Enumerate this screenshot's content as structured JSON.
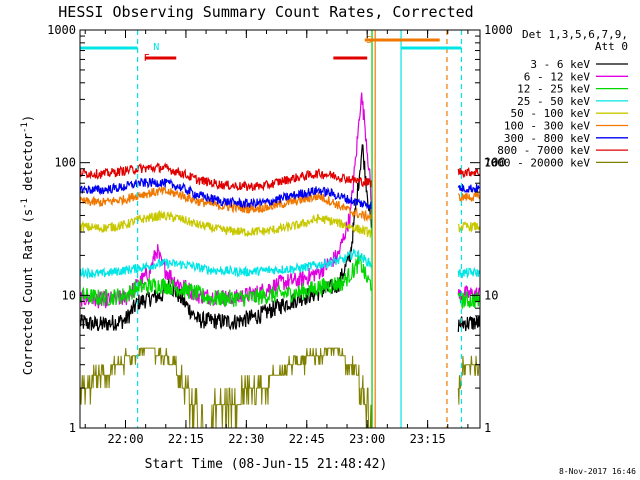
{
  "chart_data": {
    "type": "line",
    "title": "HESSI Observing Summary Count Rates, Corrected",
    "xlabel": "Start Time (08-Jun-15 21:48:42)",
    "ylabel_main": "Corrected Count Rate (s",
    "ylabel_exp1": "-1",
    "ylabel_mid": " detector",
    "ylabel_exp2": "-1",
    "ylabel_end": ")",
    "yscale": "log",
    "ylim": [
      1,
      1000
    ],
    "xlim": [
      21.8117,
      23.4667
    ],
    "x_ticks": [
      {
        "value": 22.0,
        "label": "22:00"
      },
      {
        "value": 22.25,
        "label": "22:15"
      },
      {
        "value": 22.5,
        "label": "22:30"
      },
      {
        "value": 22.75,
        "label": "22:45"
      },
      {
        "value": 23.0,
        "label": "23:00"
      },
      {
        "value": 23.25,
        "label": "23:15"
      }
    ],
    "y_ticks": [
      {
        "value": 1,
        "label": "1"
      },
      {
        "value": 10,
        "label": "10"
      },
      {
        "value": 100,
        "label": "100"
      },
      {
        "value": 1000,
        "label": "1000"
      }
    ],
    "legend": {
      "header1": "Det 1,3,5,6,7,9,",
      "header2": "Att 0",
      "placement": "right"
    },
    "date_stamp": "8-Nov-2017 16:46",
    "flag_labels": [
      {
        "text": "N",
        "x": 22.09,
        "color": "#00e5e5"
      },
      {
        "text": "F",
        "x": 22.05,
        "color": "#e00000"
      },
      {
        "text": "S",
        "x": 22.97,
        "color": "#f07800"
      }
    ],
    "flags": [
      {
        "name": "night",
        "color": "#00e5e5",
        "segments": [
          [
            21.8117,
            22.05
          ],
          [
            23.14,
            23.39
          ]
        ]
      },
      {
        "name": "flare",
        "color": "#e00000",
        "segments": [
          [
            22.08,
            22.21
          ],
          [
            22.86,
            23.0
          ]
        ]
      },
      {
        "name": "saa",
        "color": "#f07800",
        "segments": [
          [
            22.99,
            23.3
          ]
        ]
      }
    ],
    "vlines": [
      {
        "x": 22.05,
        "color": "#00e5e5",
        "dashed": true
      },
      {
        "x": 23.02,
        "color": "#00c800",
        "dashed": false
      },
      {
        "x": 23.033,
        "color": "#f07800",
        "dashed": false
      },
      {
        "x": 23.14,
        "color": "#00e5e5",
        "dashed": false
      },
      {
        "x": 23.33,
        "color": "#f07800",
        "dashed": true
      },
      {
        "x": 23.39,
        "color": "#00e5e5",
        "dashed": true
      }
    ],
    "gaps": [
      [
        23.02,
        23.375
      ]
    ],
    "series": [
      {
        "name": "3 - 6 keV",
        "color": "#000000",
        "points": [
          [
            21.82,
            6.2
          ],
          [
            21.9,
            6.0
          ],
          [
            22.0,
            6.5
          ],
          [
            22.05,
            8.8
          ],
          [
            22.1,
            9.5
          ],
          [
            22.15,
            10.0
          ],
          [
            22.18,
            12.0
          ],
          [
            22.22,
            10.0
          ],
          [
            22.3,
            6.5
          ],
          [
            22.45,
            6.3
          ],
          [
            22.55,
            7.0
          ],
          [
            22.65,
            8.5
          ],
          [
            22.72,
            9.5
          ],
          [
            22.8,
            10.5
          ],
          [
            22.88,
            12.0
          ],
          [
            22.93,
            20.0
          ],
          [
            22.96,
            60.0
          ],
          [
            22.98,
            135.0
          ],
          [
            23.0,
            60.0
          ],
          [
            23.02,
            30.0
          ],
          [
            23.375,
            6.0
          ],
          [
            23.4,
            6.2
          ]
        ]
      },
      {
        "name": "6 - 12 keV",
        "color": "#e000e0",
        "points": [
          [
            21.82,
            9.5
          ],
          [
            21.9,
            9.2
          ],
          [
            22.0,
            9.5
          ],
          [
            22.05,
            12.0
          ],
          [
            22.1,
            15.0
          ],
          [
            22.13,
            22.0
          ],
          [
            22.15,
            17.0
          ],
          [
            22.2,
            13.0
          ],
          [
            22.3,
            10.0
          ],
          [
            22.45,
            9.5
          ],
          [
            22.55,
            10.5
          ],
          [
            22.65,
            12.5
          ],
          [
            22.72,
            13.0
          ],
          [
            22.8,
            15.0
          ],
          [
            22.88,
            20.0
          ],
          [
            22.93,
            40.0
          ],
          [
            22.96,
            150.0
          ],
          [
            22.975,
            330.0
          ],
          [
            22.99,
            200.0
          ],
          [
            23.01,
            80.0
          ],
          [
            23.02,
            40.0
          ],
          [
            23.375,
            10.0
          ],
          [
            23.4,
            10.2
          ]
        ]
      },
      {
        "name": "12 - 25 keV",
        "color": "#00d800",
        "points": [
          [
            21.82,
            10.0
          ],
          [
            21.9,
            9.5
          ],
          [
            22.0,
            10.0
          ],
          [
            22.05,
            11.5
          ],
          [
            22.15,
            12.0
          ],
          [
            22.25,
            11.0
          ],
          [
            22.35,
            9.5
          ],
          [
            22.5,
            9.5
          ],
          [
            22.6,
            10.0
          ],
          [
            22.72,
            10.5
          ],
          [
            22.8,
            11.5
          ],
          [
            22.9,
            12.5
          ],
          [
            22.95,
            16.0
          ],
          [
            22.97,
            18.0
          ],
          [
            23.0,
            13.0
          ],
          [
            23.02,
            12.0
          ],
          [
            23.375,
            9.0
          ],
          [
            23.4,
            9.2
          ]
        ]
      },
      {
        "name": "25 - 50 keV",
        "color": "#00e5e5",
        "points": [
          [
            21.82,
            15.0
          ],
          [
            21.9,
            14.5
          ],
          [
            22.0,
            15.5
          ],
          [
            22.05,
            16.0
          ],
          [
            22.15,
            17.5
          ],
          [
            22.25,
            17.0
          ],
          [
            22.35,
            15.5
          ],
          [
            22.5,
            15.0
          ],
          [
            22.6,
            15.5
          ],
          [
            22.72,
            16.0
          ],
          [
            22.8,
            17.0
          ],
          [
            22.9,
            18.5
          ],
          [
            22.95,
            21.0
          ],
          [
            23.0,
            18.0
          ],
          [
            23.02,
            17.0
          ],
          [
            23.375,
            14.5
          ],
          [
            23.4,
            14.8
          ]
        ]
      },
      {
        "name": "50 - 100 keV",
        "color": "#c8c800",
        "points": [
          [
            21.82,
            33.0
          ],
          [
            21.9,
            32.0
          ],
          [
            22.0,
            34.0
          ],
          [
            22.05,
            37.0
          ],
          [
            22.15,
            40.0
          ],
          [
            22.22,
            38.0
          ],
          [
            22.3,
            34.0
          ],
          [
            22.4,
            31.0
          ],
          [
            22.5,
            30.0
          ],
          [
            22.58,
            30.5
          ],
          [
            22.65,
            32.0
          ],
          [
            22.72,
            34.0
          ],
          [
            22.8,
            38.0
          ],
          [
            22.86,
            36.0
          ],
          [
            22.93,
            33.0
          ],
          [
            23.0,
            30.0
          ],
          [
            23.02,
            29.0
          ],
          [
            23.375,
            32.0
          ],
          [
            23.4,
            33.0
          ]
        ]
      },
      {
        "name": "100 - 300 keV",
        "color": "#f07800",
        "points": [
          [
            21.82,
            51.0
          ],
          [
            21.9,
            50.0
          ],
          [
            22.0,
            53.0
          ],
          [
            22.05,
            57.0
          ],
          [
            22.15,
            61.0
          ],
          [
            22.22,
            58.0
          ],
          [
            22.3,
            51.0
          ],
          [
            22.4,
            47.0
          ],
          [
            22.5,
            45.0
          ],
          [
            22.58,
            46.0
          ],
          [
            22.65,
            49.0
          ],
          [
            22.72,
            52.0
          ],
          [
            22.8,
            56.0
          ],
          [
            22.86,
            50.0
          ],
          [
            22.93,
            43.0
          ],
          [
            22.98,
            40.0
          ],
          [
            23.02,
            39.0
          ],
          [
            23.375,
            55.0
          ],
          [
            23.4,
            55.0
          ]
        ]
      },
      {
        "name": "300 - 800 keV",
        "color": "#0000f0",
        "points": [
          [
            21.82,
            63.0
          ],
          [
            21.9,
            62.0
          ],
          [
            22.0,
            66.0
          ],
          [
            22.05,
            70.0
          ],
          [
            22.15,
            71.0
          ],
          [
            22.22,
            66.0
          ],
          [
            22.3,
            57.0
          ],
          [
            22.4,
            51.0
          ],
          [
            22.5,
            49.0
          ],
          [
            22.58,
            50.0
          ],
          [
            22.65,
            54.0
          ],
          [
            22.72,
            58.0
          ],
          [
            22.8,
            62.0
          ],
          [
            22.86,
            58.0
          ],
          [
            22.93,
            52.0
          ],
          [
            22.98,
            49.0
          ],
          [
            23.02,
            48.0
          ],
          [
            23.375,
            65.0
          ],
          [
            23.4,
            64.0
          ]
        ]
      },
      {
        "name": "800 - 7000 keV",
        "color": "#e00000",
        "points": [
          [
            21.82,
            84.0
          ],
          [
            21.9,
            82.0
          ],
          [
            22.0,
            87.0
          ],
          [
            22.05,
            90.0
          ],
          [
            22.15,
            92.0
          ],
          [
            22.22,
            85.0
          ],
          [
            22.3,
            74.0
          ],
          [
            22.4,
            68.0
          ],
          [
            22.5,
            66.0
          ],
          [
            22.58,
            67.0
          ],
          [
            22.65,
            73.0
          ],
          [
            22.72,
            78.0
          ],
          [
            22.8,
            83.0
          ],
          [
            22.86,
            80.0
          ],
          [
            22.93,
            75.0
          ],
          [
            22.98,
            72.0
          ],
          [
            23.02,
            70.0
          ],
          [
            23.375,
            86.0
          ],
          [
            23.4,
            85.0
          ]
        ]
      },
      {
        "name": "7000 - 20000 keV",
        "color": "#808000",
        "staircase": true,
        "points": [
          [
            21.82,
            2.0
          ],
          [
            21.9,
            2.5
          ],
          [
            21.97,
            3.0
          ],
          [
            22.02,
            3.5
          ],
          [
            22.1,
            4.0
          ],
          [
            22.2,
            3.0
          ],
          [
            22.25,
            2.0
          ],
          [
            22.32,
            1.0
          ],
          [
            22.4,
            1.5
          ],
          [
            22.55,
            2.0
          ],
          [
            22.7,
            3.0
          ],
          [
            22.78,
            3.5
          ],
          [
            22.86,
            4.0
          ],
          [
            22.93,
            3.0
          ],
          [
            22.98,
            2.0
          ],
          [
            23.02,
            1.0
          ],
          [
            23.375,
            2.0
          ],
          [
            23.4,
            3.0
          ]
        ]
      }
    ]
  }
}
